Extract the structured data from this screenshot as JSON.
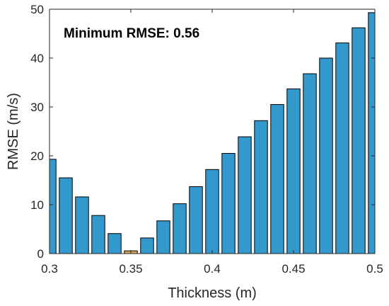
{
  "chart_data": {
    "type": "bar",
    "x": [
      0.3,
      0.31,
      0.32,
      0.33,
      0.34,
      0.35,
      0.36,
      0.37,
      0.38,
      0.39,
      0.4,
      0.41,
      0.42,
      0.43,
      0.44,
      0.45,
      0.46,
      0.47,
      0.48,
      0.49,
      0.5
    ],
    "values": [
      19.3,
      15.5,
      11.6,
      7.8,
      4.1,
      0.56,
      3.2,
      6.7,
      10.2,
      13.7,
      17.2,
      20.5,
      23.9,
      27.2,
      30.5,
      33.7,
      36.8,
      40.0,
      43.1,
      46.2,
      49.3
    ],
    "xlabel": "Thickness (m)",
    "ylabel": "RMSE (m/s)",
    "xlim": [
      0.3,
      0.5
    ],
    "ylim": [
      0,
      50
    ],
    "xticks": [
      "0.3",
      "0.35",
      "0.4",
      "0.45",
      "0.5"
    ],
    "yticks": [
      "0",
      "10",
      "20",
      "30",
      "40",
      "50"
    ],
    "annotation": "Minimum RMSE: 0.56",
    "highlight_index": 5,
    "colors": {
      "bar": "#3399cc",
      "highlight": "#d4a55a",
      "edge": "#000000",
      "axis": "#262626"
    },
    "grid": false,
    "legend": "none"
  }
}
